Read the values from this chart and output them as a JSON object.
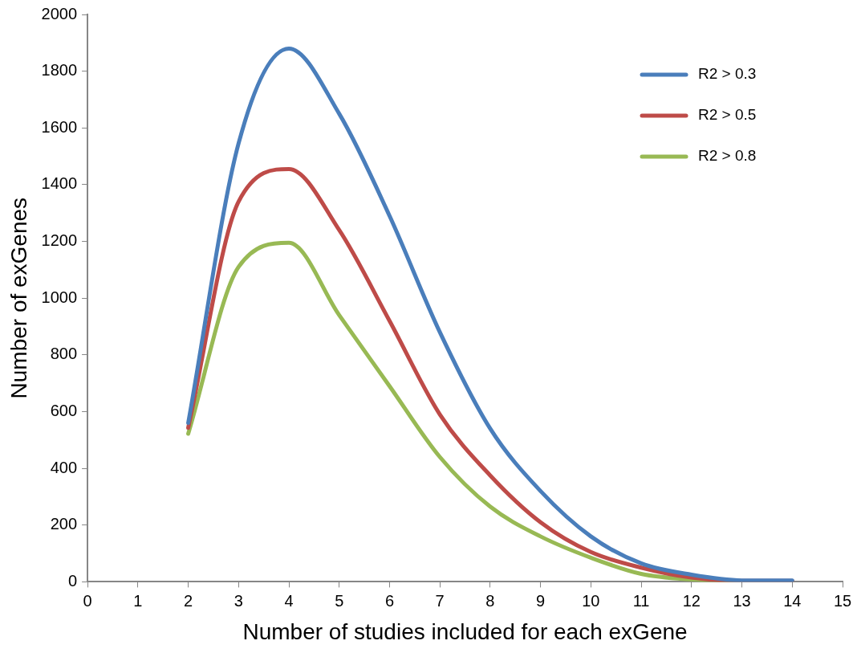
{
  "chart_data": {
    "type": "line",
    "xlabel": "Number of studies included for each exGene",
    "ylabel": "Number of exGenes",
    "x": [
      2,
      3,
      4,
      5,
      6,
      7,
      8,
      9,
      10,
      11,
      12,
      13,
      14
    ],
    "series": [
      {
        "name": "R2 > 0.3",
        "color": "#4a7ebb",
        "values": [
          560,
          1545,
          1880,
          1650,
          1290,
          880,
          540,
          320,
          160,
          65,
          25,
          5,
          5
        ]
      },
      {
        "name": "R2 > 0.5",
        "color": "#be4b48",
        "values": [
          543,
          1340,
          1455,
          1240,
          920,
          590,
          375,
          210,
          105,
          50,
          15,
          3,
          3
        ]
      },
      {
        "name": "R2 > 0.8",
        "color": "#98b954",
        "values": [
          522,
          1110,
          1195,
          940,
          690,
          440,
          265,
          160,
          85,
          28,
          8,
          2,
          2
        ]
      }
    ],
    "xlim": [
      0,
      15
    ],
    "xticks": [
      0,
      1,
      2,
      3,
      4,
      5,
      6,
      7,
      8,
      9,
      10,
      11,
      12,
      13,
      14,
      15
    ],
    "ylim": [
      0,
      2000
    ],
    "yticks": [
      0,
      200,
      400,
      600,
      800,
      1000,
      1200,
      1400,
      1600,
      1800,
      2000
    ],
    "grid": false,
    "legend": "top right",
    "marker": "none",
    "line_style": "solid"
  }
}
